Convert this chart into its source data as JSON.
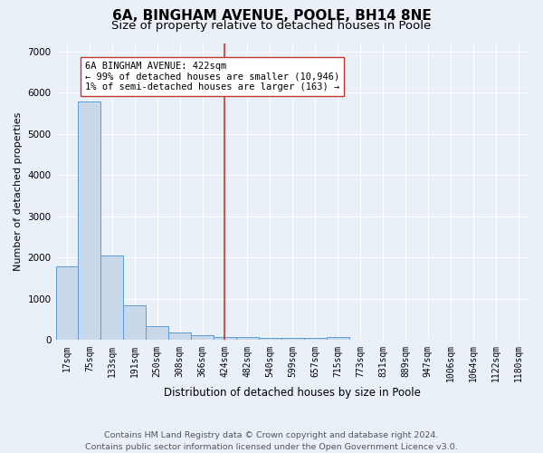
{
  "title": "6A, BINGHAM AVENUE, POOLE, BH14 8NE",
  "subtitle": "Size of property relative to detached houses in Poole",
  "xlabel": "Distribution of detached houses by size in Poole",
  "ylabel": "Number of detached properties",
  "bar_labels": [
    "17sqm",
    "75sqm",
    "133sqm",
    "191sqm",
    "250sqm",
    "308sqm",
    "366sqm",
    "424sqm",
    "482sqm",
    "540sqm",
    "599sqm",
    "657sqm",
    "715sqm",
    "773sqm",
    "831sqm",
    "889sqm",
    "947sqm",
    "1006sqm",
    "1064sqm",
    "1122sqm",
    "1180sqm"
  ],
  "bar_values": [
    1780,
    5780,
    2060,
    840,
    340,
    190,
    110,
    80,
    80,
    55,
    50,
    50,
    80,
    0,
    0,
    0,
    0,
    0,
    0,
    0,
    0
  ],
  "bar_color": "#c9d9ea",
  "bar_edgecolor": "#5b9bd5",
  "vline_x_index": 7,
  "vline_color": "#c0392b",
  "annotation_line1": "6A BINGHAM AVENUE: 422sqm",
  "annotation_line2": "← 99% of detached houses are smaller (10,946)",
  "annotation_line3": "1% of semi-detached houses are larger (163) →",
  "annotation_box_edgecolor": "#c0392b",
  "ylim": [
    0,
    7200
  ],
  "yticks": [
    0,
    1000,
    2000,
    3000,
    4000,
    5000,
    6000,
    7000
  ],
  "bg_color": "#eaf0f8",
  "grid_color": "#ffffff",
  "footer": "Contains HM Land Registry data © Crown copyright and database right 2024.\nContains public sector information licensed under the Open Government Licence v3.0.",
  "title_fontsize": 11,
  "subtitle_fontsize": 9.5,
  "annotation_fontsize": 7.5,
  "footer_fontsize": 6.8,
  "ylabel_fontsize": 8,
  "xlabel_fontsize": 8.5,
  "tick_fontsize": 7
}
